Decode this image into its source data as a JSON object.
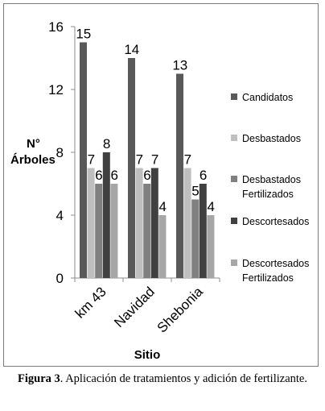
{
  "chart_data": {
    "type": "bar",
    "categories": [
      "km 43",
      "Navidad",
      "Shebonia"
    ],
    "series": [
      {
        "name": "Candidatos",
        "values": [
          15,
          14,
          13
        ],
        "color": "#595959"
      },
      {
        "name": "Desbastados",
        "values": [
          7,
          7,
          7
        ],
        "color": "#bfbfbf"
      },
      {
        "name": "Desbastados Fertilizados",
        "values": [
          6,
          6,
          5
        ],
        "color": "#808080"
      },
      {
        "name": "Descortesados",
        "values": [
          8,
          7,
          6
        ],
        "color": "#404040"
      },
      {
        "name": "Descortesados Fertilizados",
        "values": [
          6,
          4,
          4
        ],
        "color": "#a6a6a6"
      }
    ],
    "ylabel_line1": "N°",
    "ylabel_line2": "Árboles",
    "xlabel": "Sitio",
    "ylim": [
      0,
      16
    ],
    "yticks": [
      0,
      4,
      8,
      12,
      16
    ],
    "grid": false,
    "legend_position": "right"
  },
  "caption": {
    "label": "Figura 3",
    "text": ". Aplicación de tratamientos y adición de fertilizante."
  }
}
